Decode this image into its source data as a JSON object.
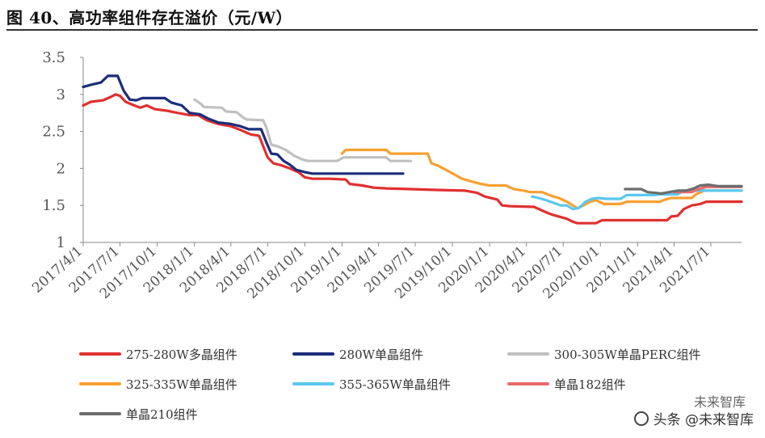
{
  "title": "图 40、高功率组件存在溢价（元/W）",
  "watermark": {
    "top": "未来智库",
    "bottom": "头条 @未来智库"
  },
  "colors": {
    "s275": "#e03030",
    "s280": "#1a2e7a",
    "s300": "#c0c0c0",
    "s325": "#f7a032",
    "s355": "#5bc8ee",
    "s182": "#e86a6a",
    "s210": "#6d6d6d"
  },
  "chart_data": {
    "type": "line",
    "ylim": [
      1,
      3.5
    ],
    "yticks": [
      "1",
      "1.5",
      "2",
      "2.5",
      "3",
      "3.5"
    ],
    "xticks": [
      "2017/4/1",
      "2017/7/1",
      "2017/10/1",
      "2018/1/1",
      "2018/4/1",
      "2018/7/1",
      "2018/10/1",
      "2019/1/1",
      "2019/4/1",
      "2019/7/1",
      "2019/10/1",
      "2020/1/1",
      "2020/4/1",
      "2020/7/1",
      "2020/10/1",
      "2021/1/1",
      "2021/4/1",
      "2021/7/1"
    ],
    "xlim": [
      "2017/4/1",
      "2021/9/15"
    ],
    "grid": false,
    "legend_position": "bottom",
    "series": [
      {
        "name": "275-280W多晶组件",
        "color": "#e03030",
        "points": [
          [
            "2017/4/1",
            2.85
          ],
          [
            "2017/4/20",
            2.9
          ],
          [
            "2017/5/20",
            2.92
          ],
          [
            "2017/6/10",
            2.97
          ],
          [
            "2017/6/20",
            3.0
          ],
          [
            "2017/7/1",
            2.98
          ],
          [
            "2017/7/15",
            2.9
          ],
          [
            "2017/8/1",
            2.86
          ],
          [
            "2017/8/20",
            2.82
          ],
          [
            "2017/9/5",
            2.85
          ],
          [
            "2017/9/25",
            2.8
          ],
          [
            "2017/10/25",
            2.78
          ],
          [
            "2017/11/20",
            2.75
          ],
          [
            "2017/12/20",
            2.72
          ],
          [
            "2018/1/10",
            2.72
          ],
          [
            "2018/2/1",
            2.65
          ],
          [
            "2018/3/1",
            2.6
          ],
          [
            "2018/4/1",
            2.57
          ],
          [
            "2018/4/25",
            2.52
          ],
          [
            "2018/5/20",
            2.46
          ],
          [
            "2018/6/10",
            2.44
          ],
          [
            "2018/6/20",
            2.3
          ],
          [
            "2018/7/1",
            2.15
          ],
          [
            "2018/7/15",
            2.07
          ],
          [
            "2018/8/5",
            2.04
          ],
          [
            "2018/8/25",
            2.0
          ],
          [
            "2018/9/15",
            1.95
          ],
          [
            "2018/10/1",
            1.88
          ],
          [
            "2018/10/20",
            1.86
          ],
          [
            "2018/12/1",
            1.86
          ],
          [
            "2019/1/10",
            1.85
          ],
          [
            "2019/1/20",
            1.79
          ],
          [
            "2019/2/20",
            1.77
          ],
          [
            "2019/3/20",
            1.74
          ],
          [
            "2019/4/20",
            1.73
          ],
          [
            "2019/6/20",
            1.72
          ],
          [
            "2019/8/20",
            1.71
          ],
          [
            "2019/11/1",
            1.7
          ],
          [
            "2019/12/1",
            1.67
          ],
          [
            "2019/12/20",
            1.62
          ],
          [
            "2020/1/20",
            1.58
          ],
          [
            "2020/2/1",
            1.5
          ],
          [
            "2020/2/20",
            1.49
          ],
          [
            "2020/4/20",
            1.48
          ],
          [
            "2020/5/10",
            1.43
          ],
          [
            "2020/6/1",
            1.38
          ],
          [
            "2020/6/20",
            1.35
          ],
          [
            "2020/7/10",
            1.32
          ],
          [
            "2020/7/25",
            1.28
          ],
          [
            "2020/8/5",
            1.26
          ],
          [
            "2020/9/20",
            1.26
          ],
          [
            "2020/10/5",
            1.3
          ],
          [
            "2021/3/15",
            1.3
          ],
          [
            "2021/3/25",
            1.35
          ],
          [
            "2021/4/10",
            1.36
          ],
          [
            "2021/4/25",
            1.45
          ],
          [
            "2021/5/15",
            1.5
          ],
          [
            "2021/6/5",
            1.52
          ],
          [
            "2021/6/20",
            1.55
          ],
          [
            "2021/9/15",
            1.55
          ]
        ]
      },
      {
        "name": "280W单晶组件",
        "color": "#1a2e7a",
        "points": [
          [
            "2017/4/1",
            3.1
          ],
          [
            "2017/4/20",
            3.13
          ],
          [
            "2017/5/15",
            3.16
          ],
          [
            "2017/6/1",
            3.25
          ],
          [
            "2017/6/25",
            3.25
          ],
          [
            "2017/7/10",
            3.05
          ],
          [
            "2017/7/25",
            2.93
          ],
          [
            "2017/8/10",
            2.92
          ],
          [
            "2017/8/25",
            2.95
          ],
          [
            "2017/10/20",
            2.95
          ],
          [
            "2017/11/5",
            2.89
          ],
          [
            "2017/12/1",
            2.85
          ],
          [
            "2017/12/20",
            2.75
          ],
          [
            "2018/1/15",
            2.73
          ],
          [
            "2018/2/5",
            2.67
          ],
          [
            "2018/3/1",
            2.62
          ],
          [
            "2018/4/1",
            2.6
          ],
          [
            "2018/4/25",
            2.57
          ],
          [
            "2018/5/15",
            2.53
          ],
          [
            "2018/6/15",
            2.53
          ],
          [
            "2018/6/28",
            2.35
          ],
          [
            "2018/7/10",
            2.2
          ],
          [
            "2018/7/25",
            2.19
          ],
          [
            "2018/8/10",
            2.1
          ],
          [
            "2018/8/25",
            2.05
          ],
          [
            "2018/9/10",
            1.98
          ],
          [
            "2018/10/1",
            1.95
          ],
          [
            "2018/10/20",
            1.93
          ],
          [
            "2019/6/1",
            1.93
          ]
        ]
      },
      {
        "name": "300-305W单晶PERC组件",
        "color": "#c0c0c0",
        "points": [
          [
            "2018/1/1",
            2.93
          ],
          [
            "2018/1/15",
            2.88
          ],
          [
            "2018/1/25",
            2.83
          ],
          [
            "2018/3/10",
            2.82
          ],
          [
            "2018/3/20",
            2.77
          ],
          [
            "2018/4/15",
            2.76
          ],
          [
            "2018/5/1",
            2.69
          ],
          [
            "2018/5/10",
            2.66
          ],
          [
            "2018/6/20",
            2.65
          ],
          [
            "2018/6/28",
            2.55
          ],
          [
            "2018/7/10",
            2.32
          ],
          [
            "2018/7/25",
            2.3
          ],
          [
            "2018/8/15",
            2.25
          ],
          [
            "2018/9/5",
            2.17
          ],
          [
            "2018/9/25",
            2.12
          ],
          [
            "2018/10/10",
            2.1
          ],
          [
            "2018/12/20",
            2.1
          ],
          [
            "2019/1/5",
            2.15
          ],
          [
            "2019/4/20",
            2.15
          ],
          [
            "2019/5/1",
            2.1
          ],
          [
            "2019/6/20",
            2.1
          ]
        ]
      },
      {
        "name": "325-335W单晶组件",
        "color": "#f7a032",
        "points": [
          [
            "2019/1/1",
            2.2
          ],
          [
            "2019/1/10",
            2.25
          ],
          [
            "2019/4/20",
            2.25
          ],
          [
            "2019/5/1",
            2.2
          ],
          [
            "2019/8/1",
            2.2
          ],
          [
            "2019/8/10",
            2.07
          ],
          [
            "2019/8/25",
            2.04
          ],
          [
            "2019/9/15",
            1.98
          ],
          [
            "2019/10/5",
            1.92
          ],
          [
            "2019/10/25",
            1.86
          ],
          [
            "2019/11/20",
            1.82
          ],
          [
            "2019/12/10",
            1.79
          ],
          [
            "2020/1/1",
            1.77
          ],
          [
            "2020/2/10",
            1.77
          ],
          [
            "2020/3/1",
            1.72
          ],
          [
            "2020/3/25",
            1.7
          ],
          [
            "2020/4/10",
            1.68
          ],
          [
            "2020/5/10",
            1.68
          ],
          [
            "2020/6/1",
            1.63
          ],
          [
            "2020/6/20",
            1.6
          ],
          [
            "2020/7/10",
            1.55
          ],
          [
            "2020/7/25",
            1.5
          ],
          [
            "2020/8/5",
            1.46
          ],
          [
            "2020/8/20",
            1.5
          ],
          [
            "2020/9/5",
            1.55
          ],
          [
            "2020/9/20",
            1.57
          ],
          [
            "2020/10/10",
            1.52
          ],
          [
            "2020/11/20",
            1.52
          ],
          [
            "2020/12/5",
            1.55
          ],
          [
            "2021/2/25",
            1.55
          ],
          [
            "2021/3/10",
            1.58
          ],
          [
            "2021/3/25",
            1.6
          ],
          [
            "2021/5/15",
            1.6
          ],
          [
            "2021/5/25",
            1.65
          ],
          [
            "2021/6/15",
            1.7
          ],
          [
            "2021/9/15",
            1.7
          ]
        ]
      },
      {
        "name": "355-365W单晶组件",
        "color": "#5bc8ee",
        "points": [
          [
            "2020/4/15",
            1.62
          ],
          [
            "2020/5/1",
            1.6
          ],
          [
            "2020/5/20",
            1.57
          ],
          [
            "2020/6/10",
            1.53
          ],
          [
            "2020/6/25",
            1.5
          ],
          [
            "2020/7/10",
            1.5
          ],
          [
            "2020/7/25",
            1.45
          ],
          [
            "2020/8/10",
            1.47
          ],
          [
            "2020/8/25",
            1.55
          ],
          [
            "2020/9/10",
            1.59
          ],
          [
            "2020/9/25",
            1.6
          ],
          [
            "2020/10/15",
            1.59
          ],
          [
            "2020/11/20",
            1.59
          ],
          [
            "2020/12/5",
            1.64
          ],
          [
            "2021/2/10",
            1.64
          ],
          [
            "2021/2/25",
            1.65
          ],
          [
            "2021/4/10",
            1.65
          ],
          [
            "2021/4/25",
            1.7
          ],
          [
            "2021/9/15",
            1.7
          ]
        ]
      },
      {
        "name": "单晶182组件",
        "color": "#e86a6a",
        "points": [
          [
            "2021/4/1",
            1.68
          ],
          [
            "2021/5/15",
            1.68
          ],
          [
            "2021/6/1",
            1.72
          ],
          [
            "2021/6/20",
            1.75
          ],
          [
            "2021/9/15",
            1.75
          ]
        ]
      },
      {
        "name": "单晶210组件",
        "color": "#6d6d6d",
        "points": [
          [
            "2020/12/1",
            1.72
          ],
          [
            "2021/1/10",
            1.72
          ],
          [
            "2021/1/25",
            1.68
          ],
          [
            "2021/3/1",
            1.66
          ],
          [
            "2021/3/20",
            1.68
          ],
          [
            "2021/4/10",
            1.7
          ],
          [
            "2021/5/1",
            1.7
          ],
          [
            "2021/5/20",
            1.73
          ],
          [
            "2021/6/5",
            1.77
          ],
          [
            "2021/6/25",
            1.78
          ],
          [
            "2021/7/20",
            1.76
          ],
          [
            "2021/9/15",
            1.76
          ]
        ]
      }
    ]
  }
}
